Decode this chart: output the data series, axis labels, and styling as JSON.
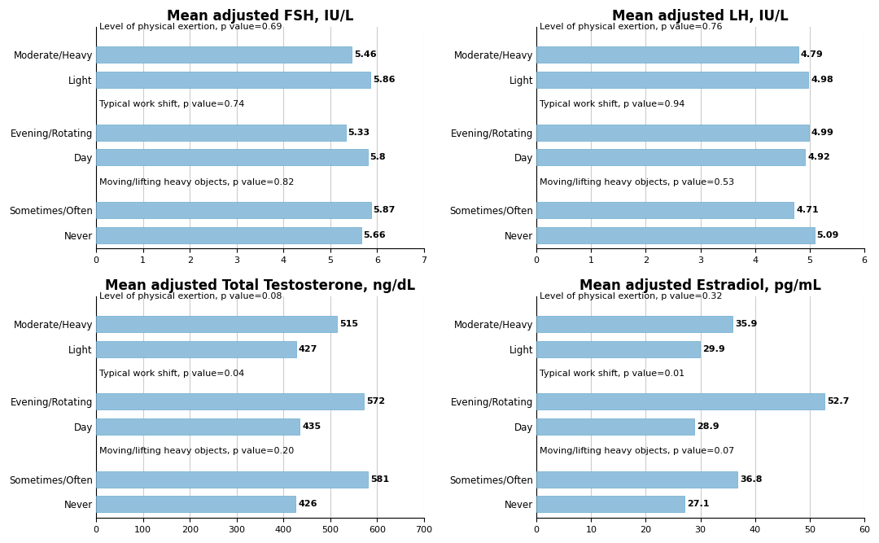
{
  "charts": [
    {
      "title": "Mean adjusted FSH, IU/L",
      "groups": [
        {
          "label": "Level of physical exertion, p value=0.69",
          "categories": [
            "Moderate/Heavy",
            "Light"
          ],
          "values": [
            5.46,
            5.86
          ]
        },
        {
          "label": "Typical work shift, p value=0.74",
          "categories": [
            "Evening/Rotating",
            "Day"
          ],
          "values": [
            5.33,
            5.8
          ]
        },
        {
          "label": "Moving/lifting heavy objects, p value=0.82",
          "categories": [
            "Sometimes/Often",
            "Never"
          ],
          "values": [
            5.87,
            5.66
          ]
        }
      ],
      "xlim": [
        0,
        7
      ],
      "xticks": [
        0,
        1,
        2,
        3,
        4,
        5,
        6,
        7
      ]
    },
    {
      "title": "Mean adjusted LH, IU/L",
      "groups": [
        {
          "label": "Level of physical exertion, p value=0.76",
          "categories": [
            "Moderate/Heavy",
            "Light"
          ],
          "values": [
            4.79,
            4.98
          ]
        },
        {
          "label": "Typical work shift, p value=0.94",
          "categories": [
            "Evening/Rotating",
            "Day"
          ],
          "values": [
            4.99,
            4.92
          ]
        },
        {
          "label": "Moving/lifting heavy objects, p value=0.53",
          "categories": [
            "Sometimes/Often",
            "Never"
          ],
          "values": [
            4.71,
            5.09
          ]
        }
      ],
      "xlim": [
        0,
        6
      ],
      "xticks": [
        0,
        1,
        2,
        3,
        4,
        5,
        6
      ]
    },
    {
      "title": "Mean adjusted Total Testosterone, ng/dL",
      "groups": [
        {
          "label": "Level of physical exertion, p value=0.08",
          "categories": [
            "Moderate/Heavy",
            "Light"
          ],
          "values": [
            515,
            427
          ]
        },
        {
          "label": "Typical work shift, p value=0.04",
          "categories": [
            "Evening/Rotating",
            "Day"
          ],
          "values": [
            572,
            435
          ]
        },
        {
          "label": "Moving/lifting heavy objects, p value=0.20",
          "categories": [
            "Sometimes/Often",
            "Never"
          ],
          "values": [
            581,
            426
          ]
        }
      ],
      "xlim": [
        0,
        700
      ],
      "xticks": [
        0,
        100,
        200,
        300,
        400,
        500,
        600,
        700
      ]
    },
    {
      "title": "Mean adjusted Estradiol, pg/mL",
      "groups": [
        {
          "label": "Level of physical exertion, p value=0.32",
          "categories": [
            "Moderate/Heavy",
            "Light"
          ],
          "values": [
            35.9,
            29.9
          ]
        },
        {
          "label": "Typical work shift, p value=0.01",
          "categories": [
            "Evening/Rotating",
            "Day"
          ],
          "values": [
            52.7,
            28.9
          ]
        },
        {
          "label": "Moving/lifting heavy objects, p value=0.07",
          "categories": [
            "Sometimes/Often",
            "Never"
          ],
          "values": [
            36.8,
            27.1
          ]
        }
      ],
      "xlim": [
        0,
        60
      ],
      "xticks": [
        0,
        10,
        20,
        30,
        40,
        50,
        60
      ]
    }
  ],
  "bar_color": "#92C0DC",
  "bar_edge_color": "#6AAACF",
  "background_color": "#FFFFFF",
  "grid_color": "#CCCCCC",
  "title_fontsize": 12,
  "label_fontsize": 8.5,
  "value_fontsize": 8,
  "tick_fontsize": 8,
  "group_label_fontsize": 8
}
